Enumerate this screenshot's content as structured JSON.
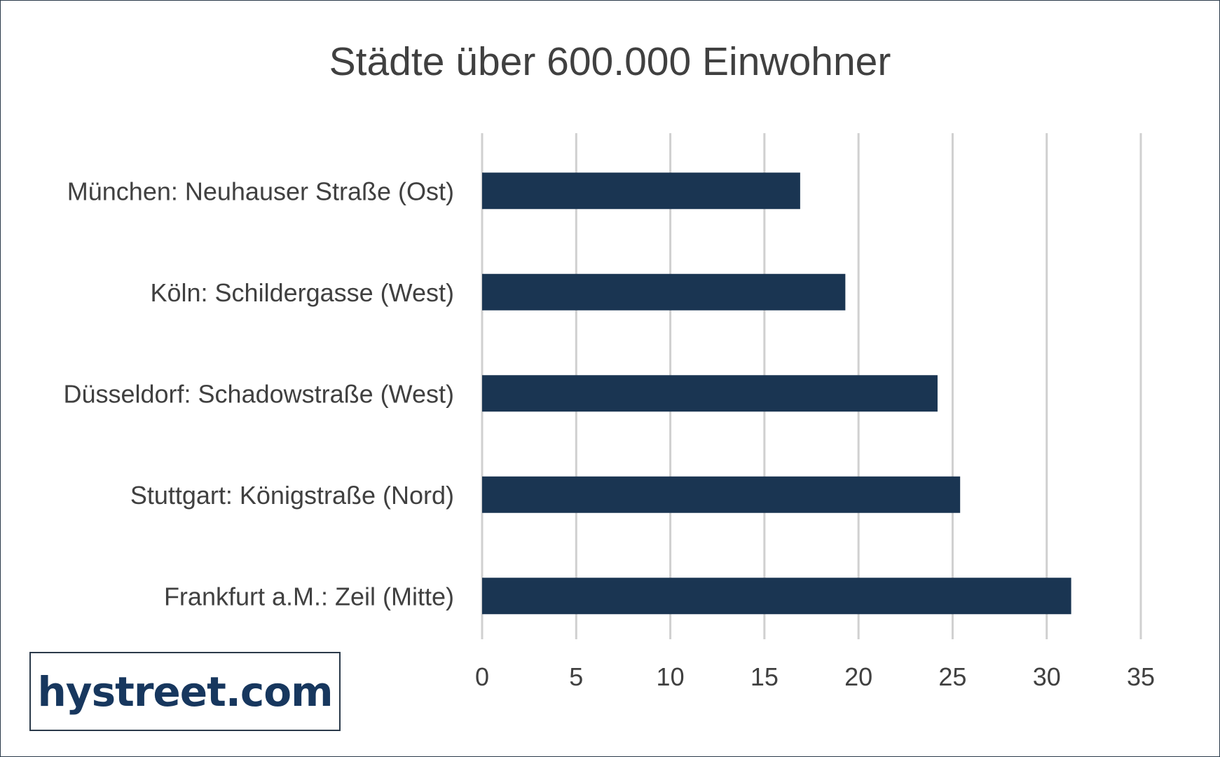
{
  "chart_data": {
    "type": "bar",
    "orientation": "horizontal",
    "title": "Städte über 600.000 Einwohner",
    "categories": [
      "München: Neuhauser Straße (Ost)",
      "Köln: Schildergasse (West)",
      "Düsseldorf: Schadowstraße (West)",
      "Stuttgart: Königstraße (Nord)",
      "Frankfurt a.M.: Zeil (Mitte)"
    ],
    "values": [
      16.9,
      19.3,
      24.2,
      25.4,
      31.3
    ],
    "xlim": [
      0,
      35
    ],
    "xticks": [
      "0",
      "5",
      "10",
      "15",
      "20",
      "25",
      "30",
      "35"
    ],
    "grid": "vertical",
    "bar_color": "#1a3552"
  },
  "logo": {
    "text": "hystreet.com"
  }
}
